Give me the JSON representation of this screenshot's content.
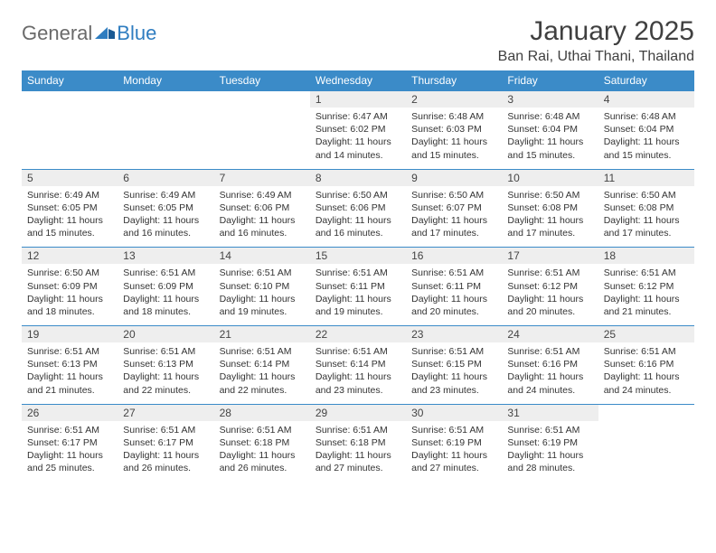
{
  "logo": {
    "general": "General",
    "blue": "Blue"
  },
  "title": {
    "month": "January 2025",
    "location": "Ban Rai, Uthai Thani, Thailand"
  },
  "colors": {
    "header_bg": "#3b8bc8",
    "header_text": "#ffffff",
    "daynum_bg": "#eeeeee",
    "border": "#3b8bc8",
    "logo_general": "#6a6a6a",
    "logo_blue": "#2f7dc0",
    "text": "#333333",
    "title_text": "#404040",
    "background": "#ffffff"
  },
  "weekdays": [
    "Sunday",
    "Monday",
    "Tuesday",
    "Wednesday",
    "Thursday",
    "Friday",
    "Saturday"
  ],
  "weeks": [
    [
      {
        "n": "",
        "text": ""
      },
      {
        "n": "",
        "text": ""
      },
      {
        "n": "",
        "text": ""
      },
      {
        "n": "1",
        "text": "Sunrise: 6:47 AM\nSunset: 6:02 PM\nDaylight: 11 hours and 14 minutes."
      },
      {
        "n": "2",
        "text": "Sunrise: 6:48 AM\nSunset: 6:03 PM\nDaylight: 11 hours and 15 minutes."
      },
      {
        "n": "3",
        "text": "Sunrise: 6:48 AM\nSunset: 6:04 PM\nDaylight: 11 hours and 15 minutes."
      },
      {
        "n": "4",
        "text": "Sunrise: 6:48 AM\nSunset: 6:04 PM\nDaylight: 11 hours and 15 minutes."
      }
    ],
    [
      {
        "n": "5",
        "text": "Sunrise: 6:49 AM\nSunset: 6:05 PM\nDaylight: 11 hours and 15 minutes."
      },
      {
        "n": "6",
        "text": "Sunrise: 6:49 AM\nSunset: 6:05 PM\nDaylight: 11 hours and 16 minutes."
      },
      {
        "n": "7",
        "text": "Sunrise: 6:49 AM\nSunset: 6:06 PM\nDaylight: 11 hours and 16 minutes."
      },
      {
        "n": "8",
        "text": "Sunrise: 6:50 AM\nSunset: 6:06 PM\nDaylight: 11 hours and 16 minutes."
      },
      {
        "n": "9",
        "text": "Sunrise: 6:50 AM\nSunset: 6:07 PM\nDaylight: 11 hours and 17 minutes."
      },
      {
        "n": "10",
        "text": "Sunrise: 6:50 AM\nSunset: 6:08 PM\nDaylight: 11 hours and 17 minutes."
      },
      {
        "n": "11",
        "text": "Sunrise: 6:50 AM\nSunset: 6:08 PM\nDaylight: 11 hours and 17 minutes."
      }
    ],
    [
      {
        "n": "12",
        "text": "Sunrise: 6:50 AM\nSunset: 6:09 PM\nDaylight: 11 hours and 18 minutes."
      },
      {
        "n": "13",
        "text": "Sunrise: 6:51 AM\nSunset: 6:09 PM\nDaylight: 11 hours and 18 minutes."
      },
      {
        "n": "14",
        "text": "Sunrise: 6:51 AM\nSunset: 6:10 PM\nDaylight: 11 hours and 19 minutes."
      },
      {
        "n": "15",
        "text": "Sunrise: 6:51 AM\nSunset: 6:11 PM\nDaylight: 11 hours and 19 minutes."
      },
      {
        "n": "16",
        "text": "Sunrise: 6:51 AM\nSunset: 6:11 PM\nDaylight: 11 hours and 20 minutes."
      },
      {
        "n": "17",
        "text": "Sunrise: 6:51 AM\nSunset: 6:12 PM\nDaylight: 11 hours and 20 minutes."
      },
      {
        "n": "18",
        "text": "Sunrise: 6:51 AM\nSunset: 6:12 PM\nDaylight: 11 hours and 21 minutes."
      }
    ],
    [
      {
        "n": "19",
        "text": "Sunrise: 6:51 AM\nSunset: 6:13 PM\nDaylight: 11 hours and 21 minutes."
      },
      {
        "n": "20",
        "text": "Sunrise: 6:51 AM\nSunset: 6:13 PM\nDaylight: 11 hours and 22 minutes."
      },
      {
        "n": "21",
        "text": "Sunrise: 6:51 AM\nSunset: 6:14 PM\nDaylight: 11 hours and 22 minutes."
      },
      {
        "n": "22",
        "text": "Sunrise: 6:51 AM\nSunset: 6:14 PM\nDaylight: 11 hours and 23 minutes."
      },
      {
        "n": "23",
        "text": "Sunrise: 6:51 AM\nSunset: 6:15 PM\nDaylight: 11 hours and 23 minutes."
      },
      {
        "n": "24",
        "text": "Sunrise: 6:51 AM\nSunset: 6:16 PM\nDaylight: 11 hours and 24 minutes."
      },
      {
        "n": "25",
        "text": "Sunrise: 6:51 AM\nSunset: 6:16 PM\nDaylight: 11 hours and 24 minutes."
      }
    ],
    [
      {
        "n": "26",
        "text": "Sunrise: 6:51 AM\nSunset: 6:17 PM\nDaylight: 11 hours and 25 minutes."
      },
      {
        "n": "27",
        "text": "Sunrise: 6:51 AM\nSunset: 6:17 PM\nDaylight: 11 hours and 26 minutes."
      },
      {
        "n": "28",
        "text": "Sunrise: 6:51 AM\nSunset: 6:18 PM\nDaylight: 11 hours and 26 minutes."
      },
      {
        "n": "29",
        "text": "Sunrise: 6:51 AM\nSunset: 6:18 PM\nDaylight: 11 hours and 27 minutes."
      },
      {
        "n": "30",
        "text": "Sunrise: 6:51 AM\nSunset: 6:19 PM\nDaylight: 11 hours and 27 minutes."
      },
      {
        "n": "31",
        "text": "Sunrise: 6:51 AM\nSunset: 6:19 PM\nDaylight: 11 hours and 28 minutes."
      },
      {
        "n": "",
        "text": ""
      }
    ]
  ]
}
